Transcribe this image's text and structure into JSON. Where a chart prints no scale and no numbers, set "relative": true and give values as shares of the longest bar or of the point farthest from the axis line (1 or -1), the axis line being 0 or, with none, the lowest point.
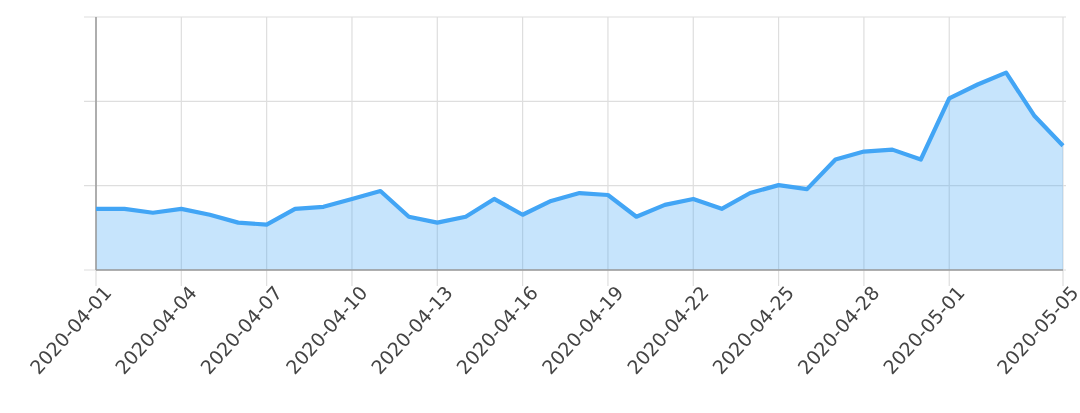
{
  "chart_data": {
    "type": "area",
    "relative": true,
    "x": [
      "2020-04-01",
      "2020-04-02",
      "2020-04-03",
      "2020-04-04",
      "2020-04-05",
      "2020-04-06",
      "2020-04-07",
      "2020-04-08",
      "2020-04-09",
      "2020-04-10",
      "2020-04-11",
      "2020-04-12",
      "2020-04-13",
      "2020-04-14",
      "2020-04-15",
      "2020-04-16",
      "2020-04-17",
      "2020-04-18",
      "2020-04-19",
      "2020-04-20",
      "2020-04-21",
      "2020-04-22",
      "2020-04-23",
      "2020-04-24",
      "2020-04-25",
      "2020-04-26",
      "2020-04-27",
      "2020-04-28",
      "2020-04-29",
      "2020-04-30",
      "2020-05-01",
      "2020-05-02",
      "2020-05-03",
      "2020-05-04",
      "2020-05-05"
    ],
    "series": [
      {
        "color": "#42a5f5",
        "values": [
          0.31,
          0.31,
          0.29,
          0.31,
          0.28,
          0.24,
          0.23,
          0.31,
          0.32,
          0.36,
          0.4,
          0.27,
          0.24,
          0.27,
          0.36,
          0.28,
          0.35,
          0.39,
          0.38,
          0.27,
          0.33,
          0.36,
          0.31,
          0.39,
          0.43,
          0.41,
          0.56,
          0.6,
          0.61,
          0.56,
          0.87,
          0.94,
          1,
          0.78,
          0.63
        ]
      }
    ],
    "xlim": [
      "2020-04-01",
      "2020-05-05"
    ],
    "xticks": [
      "2020-04-01",
      "2020-04-04",
      "2020-04-07",
      "2020-04-10",
      "2020-04-13",
      "2020-04-16",
      "2020-04-19",
      "2020-04-22",
      "2020-04-25",
      "2020-04-28",
      "2020-05-01",
      "2020-05-05"
    ],
    "grid": true
  }
}
